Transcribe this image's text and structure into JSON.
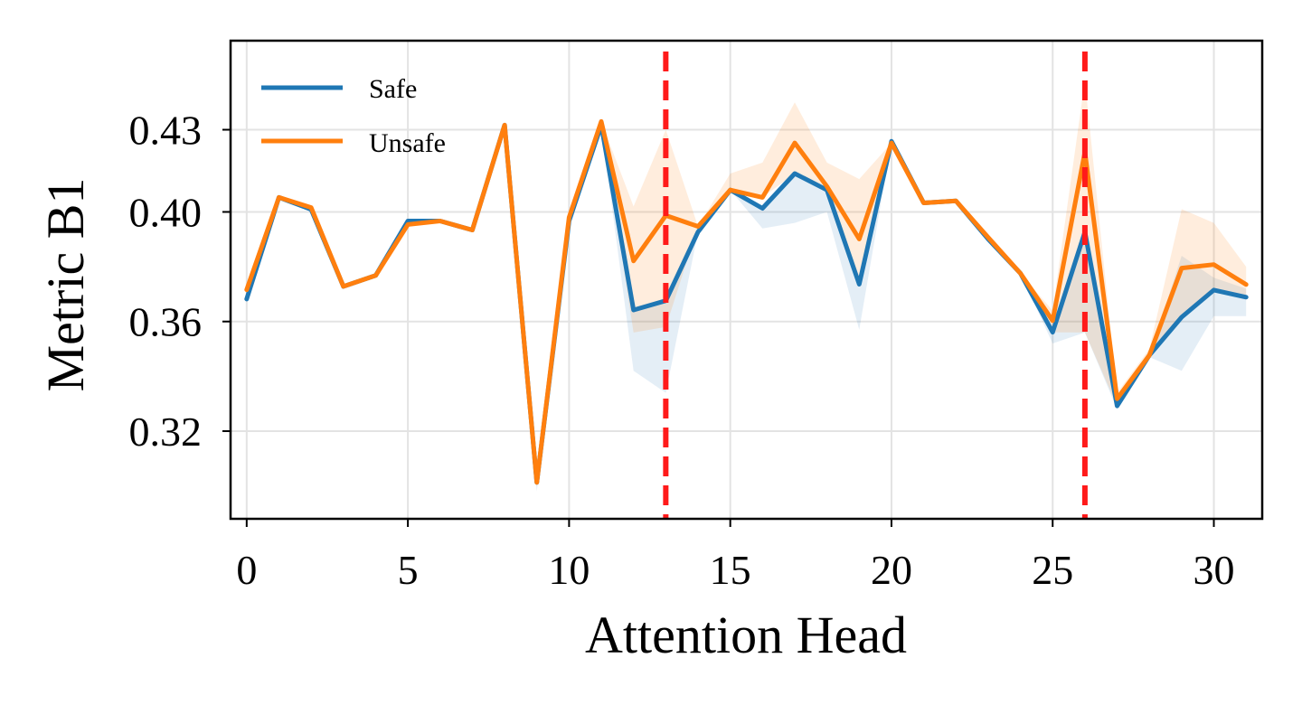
{
  "chart_data": {
    "type": "line",
    "title": "",
    "xlabel": "Attention Head",
    "ylabel": "Metric B1",
    "xlim": [
      -0.5,
      31.5
    ],
    "ylim": [
      0.288,
      0.4625
    ],
    "xticks": [
      0,
      5,
      10,
      15,
      20,
      25,
      30
    ],
    "xtick_labels": [
      "0",
      "5",
      "10",
      "15",
      "20",
      "25",
      "30"
    ],
    "yticks": [
      0.32,
      0.36,
      0.4,
      0.43
    ],
    "ytick_labels": [
      "0.32",
      "0.36",
      "0.40",
      "0.43"
    ],
    "grid": true,
    "legend_position": "top-left",
    "x": [
      0,
      1,
      2,
      3,
      4,
      5,
      6,
      7,
      8,
      9,
      10,
      11,
      12,
      13,
      14,
      15,
      16,
      17,
      18,
      19,
      20,
      21,
      22,
      23,
      24,
      25,
      26,
      27,
      28,
      29,
      30,
      31
    ],
    "series": [
      {
        "name": "Safe",
        "color": "#1f77b4",
        "values": [
          0.3682,
          0.4053,
          0.4009,
          0.3728,
          0.3768,
          0.3967,
          0.3967,
          0.3934,
          0.4317,
          0.3013,
          0.3967,
          0.4317,
          0.3642,
          0.3676,
          0.3927,
          0.408,
          0.4013,
          0.414,
          0.408,
          0.3736,
          0.4258,
          0.4033,
          0.404,
          0.3901,
          0.3776,
          0.3561,
          0.3927,
          0.3292,
          0.3477,
          0.3616,
          0.3715,
          0.3689
        ],
        "band_lower": [
          0.3682,
          0.4053,
          0.4009,
          0.3728,
          0.3768,
          0.3967,
          0.3967,
          0.3934,
          0.4317,
          0.298,
          0.3967,
          0.4317,
          0.342,
          0.334,
          0.3927,
          0.408,
          0.394,
          0.396,
          0.4,
          0.357,
          0.4258,
          0.4033,
          0.404,
          0.3901,
          0.3776,
          0.352,
          0.356,
          0.328,
          0.347,
          0.342,
          0.362,
          0.362
        ],
        "band_upper": [
          0.3682,
          0.4053,
          0.4009,
          0.3728,
          0.3768,
          0.3967,
          0.3967,
          0.3934,
          0.4317,
          0.3013,
          0.3967,
          0.4317,
          0.3642,
          0.3676,
          0.3927,
          0.408,
          0.4013,
          0.414,
          0.408,
          0.3736,
          0.4258,
          0.4033,
          0.404,
          0.3901,
          0.3776,
          0.3561,
          0.3927,
          0.3292,
          0.3477,
          0.384,
          0.376,
          0.372
        ]
      },
      {
        "name": "Unsafe",
        "color": "#ff7f0e",
        "values": [
          0.3716,
          0.4053,
          0.4016,
          0.3728,
          0.3768,
          0.3954,
          0.3967,
          0.3934,
          0.4317,
          0.3013,
          0.398,
          0.433,
          0.3821,
          0.3987,
          0.3947,
          0.408,
          0.4053,
          0.4252,
          0.4093,
          0.3901,
          0.4252,
          0.4033,
          0.404,
          0.3907,
          0.3776,
          0.3603,
          0.4218,
          0.3318,
          0.3477,
          0.3795,
          0.3808,
          0.3735
        ],
        "band_lower": [
          0.3716,
          0.4053,
          0.4016,
          0.3728,
          0.3768,
          0.3954,
          0.3967,
          0.3934,
          0.4317,
          0.3013,
          0.398,
          0.433,
          0.356,
          0.358,
          0.3947,
          0.408,
          0.4053,
          0.414,
          0.4093,
          0.3736,
          0.4252,
          0.4033,
          0.404,
          0.3907,
          0.3776,
          0.3561,
          0.356,
          0.3292,
          0.3477,
          0.3616,
          0.3715,
          0.3689
        ],
        "band_upper": [
          0.3716,
          0.4053,
          0.4016,
          0.3728,
          0.3768,
          0.3954,
          0.3967,
          0.3934,
          0.4317,
          0.3013,
          0.398,
          0.433,
          0.402,
          0.43,
          0.3947,
          0.414,
          0.418,
          0.44,
          0.418,
          0.412,
          0.4252,
          0.4033,
          0.404,
          0.3907,
          0.3776,
          0.364,
          0.448,
          0.334,
          0.35,
          0.401,
          0.396,
          0.38
        ]
      }
    ],
    "vlines": [
      {
        "x": 13,
        "color": "#ff1a1a",
        "style": "dashed"
      },
      {
        "x": 26,
        "color": "#ff1a1a",
        "style": "dashed"
      }
    ]
  }
}
